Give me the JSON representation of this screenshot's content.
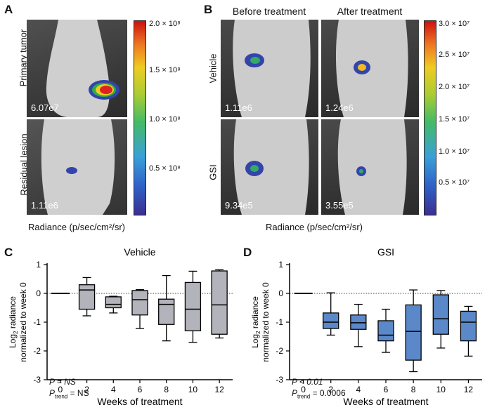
{
  "panel_a": {
    "letter": "A",
    "rows": [
      {
        "label": "Primary tumor",
        "value": "6.07e7"
      },
      {
        "label": "Residual lesion",
        "value": "1.11e6"
      }
    ],
    "colorbar_ticks": [
      "2.0 × 10⁸",
      "1.5 × 10⁸",
      "1.0 × 10⁸",
      "0.5 × 10⁸"
    ],
    "radiance_label": "Radiance (p/sec/cm²/sr)"
  },
  "panel_b": {
    "letter": "B",
    "col_headers": [
      "Before treatment",
      "After treatment"
    ],
    "row_labels": [
      "Vehicle",
      "GSI"
    ],
    "values": [
      [
        "1.11e6",
        "1.24e6"
      ],
      [
        "9.34e5",
        "3.55e5"
      ]
    ],
    "colorbar_ticks": [
      "3.0 × 10⁷",
      "2.5 × 10⁷",
      "2.0 × 10⁷",
      "1.5 × 10⁷",
      "1.0 × 10⁷",
      "0.5 × 10⁷"
    ],
    "radiance_label": "Radiance (p/sec/cm²/sr)"
  },
  "panel_c": {
    "letter": "C",
    "stats_p": "P = NS",
    "stats_trend": "P",
    "stats_trend_sub": "trend",
    "stats_trend_val": " = NS"
  },
  "panel_d": {
    "letter": "D",
    "stats_p": "P < 0.01",
    "stats_trend": "P",
    "stats_trend_sub": "trend",
    "stats_trend_val": " = 0.0006"
  },
  "colors": {
    "vehicle_box": "#b3b3bb",
    "gsi_box": "#5b88c8"
  },
  "chart_data": [
    {
      "type": "box",
      "title": "Vehicle",
      "xlabel": "Weeks of treatment",
      "ylabel": "Log2 radiance normalized to week 0",
      "categories": [
        "0",
        "2",
        "4",
        "6",
        "8",
        "10",
        "12"
      ],
      "ylim": [
        -3,
        1
      ],
      "yticks": [
        "1",
        "0",
        "-1",
        "-2",
        "-3"
      ],
      "boxes": [
        {
          "x": "0",
          "min": 0,
          "q1": 0,
          "median": 0,
          "q3": 0,
          "max": 0
        },
        {
          "x": "2",
          "min": -0.78,
          "q1": -0.55,
          "median": 0.12,
          "q3": 0.3,
          "max": 0.55
        },
        {
          "x": "4",
          "min": -0.68,
          "q1": -0.5,
          "median": -0.38,
          "q3": -0.12,
          "max": -0.1
        },
        {
          "x": "6",
          "min": -1.22,
          "q1": -0.75,
          "median": -0.22,
          "q3": 0.1,
          "max": 0.13
        },
        {
          "x": "8",
          "min": -1.65,
          "q1": -1.08,
          "median": -0.38,
          "q3": -0.2,
          "max": 0.62
        },
        {
          "x": "10",
          "min": -1.7,
          "q1": -1.3,
          "median": -0.55,
          "q3": 0.38,
          "max": 0.77
        },
        {
          "x": "12",
          "min": -1.55,
          "q1": -1.42,
          "median": -0.4,
          "q3": 0.78,
          "max": 0.82
        }
      ]
    },
    {
      "type": "box",
      "title": "GSI",
      "xlabel": "Weeks of treatment",
      "ylabel": "Log2 radiance normalized to week 0",
      "categories": [
        "0",
        "2",
        "4",
        "6",
        "8",
        "10",
        "12"
      ],
      "ylim": [
        -3,
        1
      ],
      "yticks": [
        "1",
        "0",
        "-1",
        "-2",
        "-3"
      ],
      "boxes": [
        {
          "x": "0",
          "min": 0,
          "q1": 0,
          "median": 0,
          "q3": 0,
          "max": 0
        },
        {
          "x": "2",
          "min": -1.45,
          "q1": -1.22,
          "median": -1.0,
          "q3": -0.68,
          "max": 0.02
        },
        {
          "x": "4",
          "min": -1.85,
          "q1": -1.25,
          "median": -1.02,
          "q3": -0.75,
          "max": -0.38
        },
        {
          "x": "6",
          "min": -2.05,
          "q1": -1.65,
          "median": -1.45,
          "q3": -0.95,
          "max": -0.55
        },
        {
          "x": "8",
          "min": -2.72,
          "q1": -2.32,
          "median": -1.32,
          "q3": -0.4,
          "max": 0.12
        },
        {
          "x": "10",
          "min": -1.9,
          "q1": -1.42,
          "median": -0.88,
          "q3": -0.05,
          "max": 0.1
        },
        {
          "x": "12",
          "min": -2.18,
          "q1": -1.65,
          "median": -1.0,
          "q3": -0.62,
          "max": -0.45
        }
      ]
    }
  ]
}
